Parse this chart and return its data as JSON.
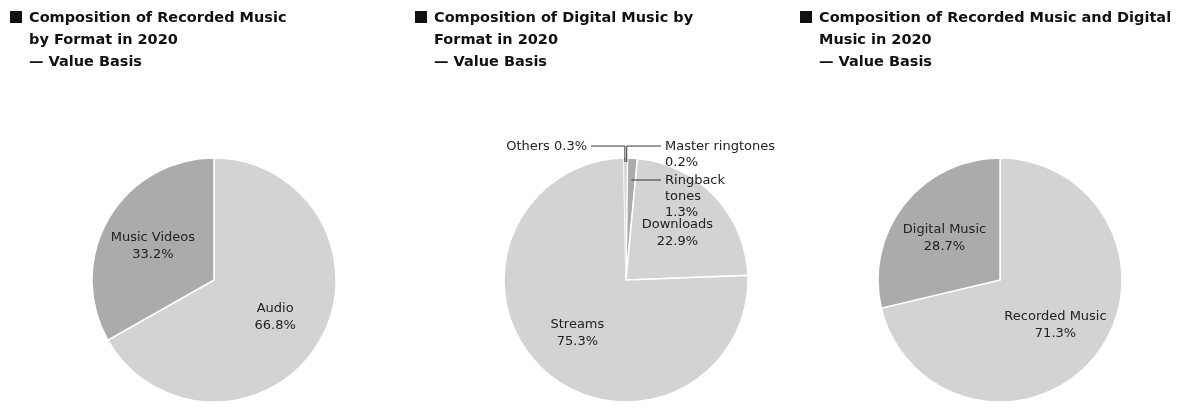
{
  "chart_data": [
    {
      "type": "pie",
      "title": "Composition of Recorded Music by Format in 2020",
      "subtitle": "— Value Basis",
      "categories": [
        "Audio",
        "Music Videos"
      ],
      "values": [
        66.8,
        33.2
      ],
      "colors": [
        "#d3d3d3",
        "#ababab"
      ],
      "value_labels": [
        "66.8%",
        "33.2%"
      ]
    },
    {
      "type": "pie",
      "title": "Composition of Digital Music by Format in 2020",
      "subtitle": "— Value Basis",
      "categories": [
        "Master ringtones",
        "Ringback tones",
        "Downloads",
        "Streams",
        "Others"
      ],
      "values": [
        0.2,
        1.3,
        22.9,
        75.3,
        0.3
      ],
      "colors": [
        "#ababab",
        "#ababab",
        "#d3d3d3",
        "#d3d3d3",
        "#d3d3d3"
      ],
      "value_labels": [
        "0.2%",
        "1.3%",
        "22.9%",
        "75.3%",
        "0.3%"
      ]
    },
    {
      "type": "pie",
      "title": "Composition of Recorded Music and Digital Music in 2020",
      "subtitle": "— Value Basis",
      "categories": [
        "Recorded Music",
        "Digital Music"
      ],
      "values": [
        71.3,
        28.7
      ],
      "colors": [
        "#d3d3d3",
        "#ababab"
      ],
      "value_labels": [
        "71.3%",
        "28.7%"
      ]
    }
  ]
}
